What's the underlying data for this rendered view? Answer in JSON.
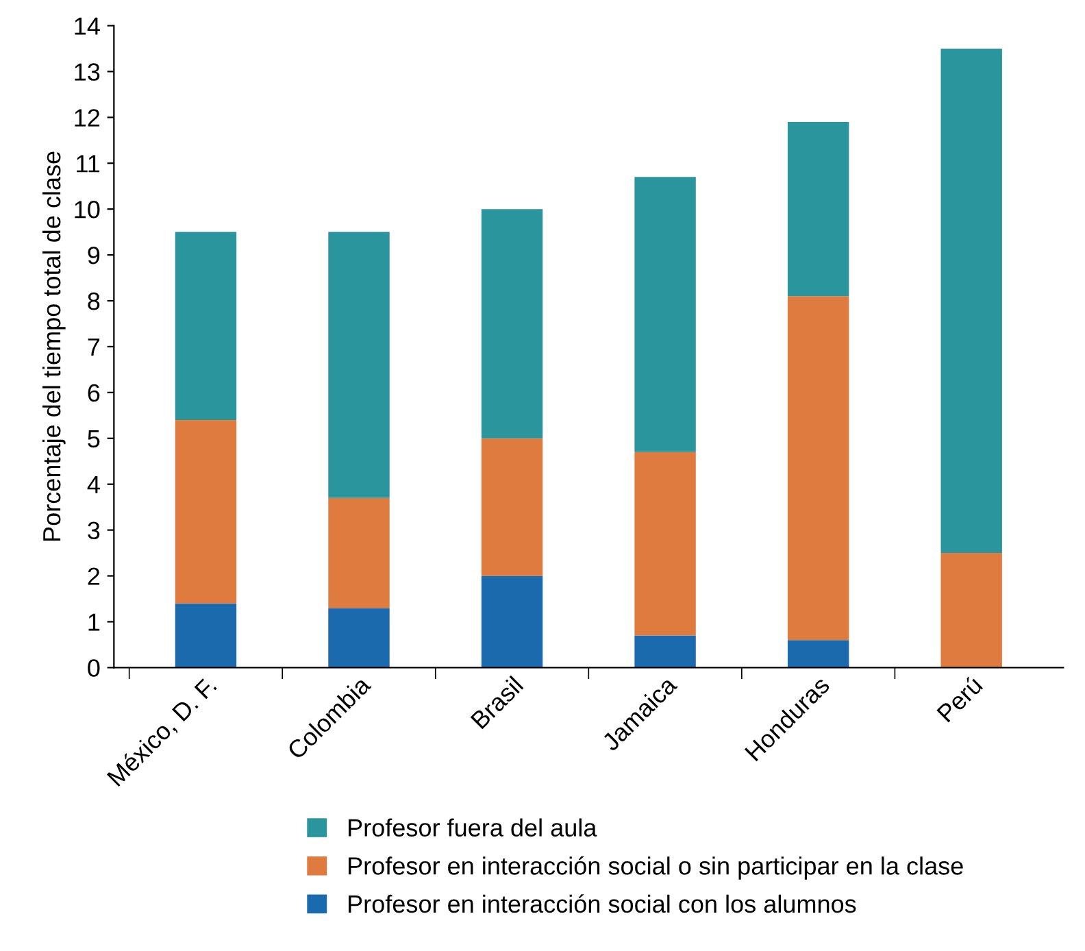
{
  "chart_data": {
    "type": "bar",
    "stacked": true,
    "ylabel": "Porcentaje del tiempo total de clase",
    "categories": [
      "México, D. F.",
      "Colombia",
      "Brasil",
      "Jamaica",
      "Honduras",
      "Perú"
    ],
    "series": [
      {
        "name": "Profesor en interacción social con los alumnos",
        "color": "#1a6aad",
        "values": [
          1.4,
          1.3,
          2.0,
          0.7,
          0.6,
          0
        ]
      },
      {
        "name": "Profesor en interacción social o sin participar en la clase",
        "color": "#e07b3f",
        "values": [
          4.0,
          2.4,
          3.0,
          4.0,
          7.5,
          2.5
        ]
      },
      {
        "name": "Profesor fuera del aula",
        "color": "#2a959c",
        "values": [
          4.1,
          5.8,
          5.0,
          6.0,
          3.8,
          11.0
        ]
      }
    ],
    "ylim": [
      0,
      14
    ],
    "yticks": [
      0,
      1,
      2,
      3,
      4,
      5,
      6,
      7,
      8,
      9,
      10,
      11,
      12,
      13,
      14
    ],
    "grid": false,
    "legend": "bottom"
  }
}
